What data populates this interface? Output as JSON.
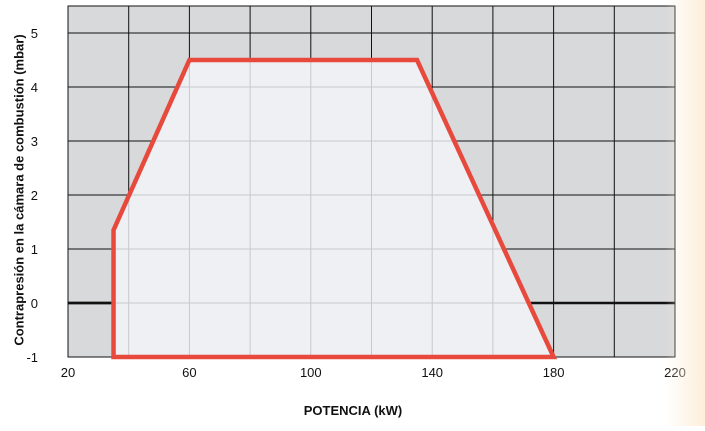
{
  "chart_data": {
    "type": "area",
    "xlabel": "POTENCIA (kW)",
    "ylabel": "Contrapresión en la cámara de combustión (mbar)",
    "xlim": [
      20,
      220
    ],
    "ylim": [
      -1,
      5.5
    ],
    "x_ticks": [
      20,
      60,
      100,
      140,
      180,
      220
    ],
    "y_ticks": [
      -1,
      0,
      1,
      2,
      3,
      4,
      5
    ],
    "x_minor_step": 20,
    "y_minor_step": 1,
    "grid": true,
    "polygon": {
      "x": [
        35,
        35,
        60,
        135,
        180,
        35
      ],
      "y": [
        -1,
        1.35,
        4.5,
        4.5,
        -1,
        -1
      ]
    },
    "colors": {
      "outline": "#e8493d",
      "fill": "#eef0f4",
      "background": "#d8d9db",
      "grid": "#111111",
      "fill_grid": "#c6c8cc"
    }
  }
}
